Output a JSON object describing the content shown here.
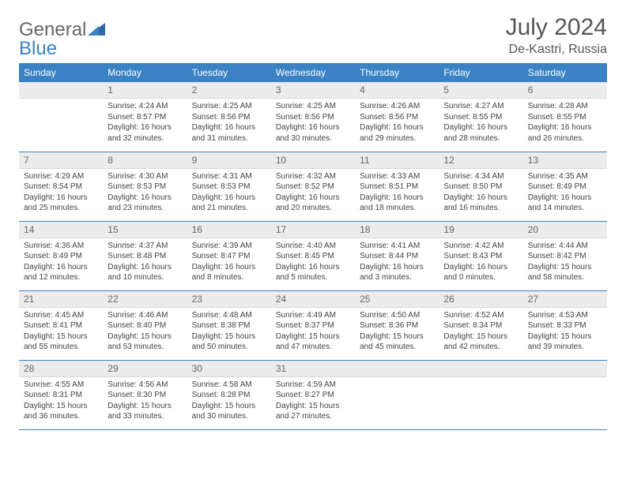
{
  "logo": {
    "line1": "General",
    "line2": "Blue"
  },
  "title": "July 2024",
  "location": "De-Kastri, Russia",
  "colors": {
    "header_bg": "#3a82c4",
    "header_text": "#ffffff",
    "daynum_bg": "#ececec",
    "daynum_text": "#666666",
    "body_text": "#444444",
    "rule": "#3a82c4",
    "page_bg": "#ffffff"
  },
  "typography": {
    "title_size_pt": 22,
    "location_size_pt": 12,
    "dayheader_size_pt": 9,
    "cell_size_pt": 7.5
  },
  "calendar": {
    "day_headers": [
      "Sunday",
      "Monday",
      "Tuesday",
      "Wednesday",
      "Thursday",
      "Friday",
      "Saturday"
    ],
    "weeks": [
      [
        null,
        {
          "n": "1",
          "sr": "Sunrise: 4:24 AM",
          "ss": "Sunset: 8:57 PM",
          "d1": "Daylight: 16 hours",
          "d2": "and 32 minutes."
        },
        {
          "n": "2",
          "sr": "Sunrise: 4:25 AM",
          "ss": "Sunset: 8:56 PM",
          "d1": "Daylight: 16 hours",
          "d2": "and 31 minutes."
        },
        {
          "n": "3",
          "sr": "Sunrise: 4:25 AM",
          "ss": "Sunset: 8:56 PM",
          "d1": "Daylight: 16 hours",
          "d2": "and 30 minutes."
        },
        {
          "n": "4",
          "sr": "Sunrise: 4:26 AM",
          "ss": "Sunset: 8:56 PM",
          "d1": "Daylight: 16 hours",
          "d2": "and 29 minutes."
        },
        {
          "n": "5",
          "sr": "Sunrise: 4:27 AM",
          "ss": "Sunset: 8:55 PM",
          "d1": "Daylight: 16 hours",
          "d2": "and 28 minutes."
        },
        {
          "n": "6",
          "sr": "Sunrise: 4:28 AM",
          "ss": "Sunset: 8:55 PM",
          "d1": "Daylight: 16 hours",
          "d2": "and 26 minutes."
        }
      ],
      [
        {
          "n": "7",
          "sr": "Sunrise: 4:29 AM",
          "ss": "Sunset: 8:54 PM",
          "d1": "Daylight: 16 hours",
          "d2": "and 25 minutes."
        },
        {
          "n": "8",
          "sr": "Sunrise: 4:30 AM",
          "ss": "Sunset: 8:53 PM",
          "d1": "Daylight: 16 hours",
          "d2": "and 23 minutes."
        },
        {
          "n": "9",
          "sr": "Sunrise: 4:31 AM",
          "ss": "Sunset: 8:53 PM",
          "d1": "Daylight: 16 hours",
          "d2": "and 21 minutes."
        },
        {
          "n": "10",
          "sr": "Sunrise: 4:32 AM",
          "ss": "Sunset: 8:52 PM",
          "d1": "Daylight: 16 hours",
          "d2": "and 20 minutes."
        },
        {
          "n": "11",
          "sr": "Sunrise: 4:33 AM",
          "ss": "Sunset: 8:51 PM",
          "d1": "Daylight: 16 hours",
          "d2": "and 18 minutes."
        },
        {
          "n": "12",
          "sr": "Sunrise: 4:34 AM",
          "ss": "Sunset: 8:50 PM",
          "d1": "Daylight: 16 hours",
          "d2": "and 16 minutes."
        },
        {
          "n": "13",
          "sr": "Sunrise: 4:35 AM",
          "ss": "Sunset: 8:49 PM",
          "d1": "Daylight: 16 hours",
          "d2": "and 14 minutes."
        }
      ],
      [
        {
          "n": "14",
          "sr": "Sunrise: 4:36 AM",
          "ss": "Sunset: 8:49 PM",
          "d1": "Daylight: 16 hours",
          "d2": "and 12 minutes."
        },
        {
          "n": "15",
          "sr": "Sunrise: 4:37 AM",
          "ss": "Sunset: 8:48 PM",
          "d1": "Daylight: 16 hours",
          "d2": "and 10 minutes."
        },
        {
          "n": "16",
          "sr": "Sunrise: 4:39 AM",
          "ss": "Sunset: 8:47 PM",
          "d1": "Daylight: 16 hours",
          "d2": "and 8 minutes."
        },
        {
          "n": "17",
          "sr": "Sunrise: 4:40 AM",
          "ss": "Sunset: 8:45 PM",
          "d1": "Daylight: 16 hours",
          "d2": "and 5 minutes."
        },
        {
          "n": "18",
          "sr": "Sunrise: 4:41 AM",
          "ss": "Sunset: 8:44 PM",
          "d1": "Daylight: 16 hours",
          "d2": "and 3 minutes."
        },
        {
          "n": "19",
          "sr": "Sunrise: 4:42 AM",
          "ss": "Sunset: 8:43 PM",
          "d1": "Daylight: 16 hours",
          "d2": "and 0 minutes."
        },
        {
          "n": "20",
          "sr": "Sunrise: 4:44 AM",
          "ss": "Sunset: 8:42 PM",
          "d1": "Daylight: 15 hours",
          "d2": "and 58 minutes."
        }
      ],
      [
        {
          "n": "21",
          "sr": "Sunrise: 4:45 AM",
          "ss": "Sunset: 8:41 PM",
          "d1": "Daylight: 15 hours",
          "d2": "and 55 minutes."
        },
        {
          "n": "22",
          "sr": "Sunrise: 4:46 AM",
          "ss": "Sunset: 8:40 PM",
          "d1": "Daylight: 15 hours",
          "d2": "and 53 minutes."
        },
        {
          "n": "23",
          "sr": "Sunrise: 4:48 AM",
          "ss": "Sunset: 8:38 PM",
          "d1": "Daylight: 15 hours",
          "d2": "and 50 minutes."
        },
        {
          "n": "24",
          "sr": "Sunrise: 4:49 AM",
          "ss": "Sunset: 8:37 PM",
          "d1": "Daylight: 15 hours",
          "d2": "and 47 minutes."
        },
        {
          "n": "25",
          "sr": "Sunrise: 4:50 AM",
          "ss": "Sunset: 8:36 PM",
          "d1": "Daylight: 15 hours",
          "d2": "and 45 minutes."
        },
        {
          "n": "26",
          "sr": "Sunrise: 4:52 AM",
          "ss": "Sunset: 8:34 PM",
          "d1": "Daylight: 15 hours",
          "d2": "and 42 minutes."
        },
        {
          "n": "27",
          "sr": "Sunrise: 4:53 AM",
          "ss": "Sunset: 8:33 PM",
          "d1": "Daylight: 15 hours",
          "d2": "and 39 minutes."
        }
      ],
      [
        {
          "n": "28",
          "sr": "Sunrise: 4:55 AM",
          "ss": "Sunset: 8:31 PM",
          "d1": "Daylight: 15 hours",
          "d2": "and 36 minutes."
        },
        {
          "n": "29",
          "sr": "Sunrise: 4:56 AM",
          "ss": "Sunset: 8:30 PM",
          "d1": "Daylight: 15 hours",
          "d2": "and 33 minutes."
        },
        {
          "n": "30",
          "sr": "Sunrise: 4:58 AM",
          "ss": "Sunset: 8:28 PM",
          "d1": "Daylight: 15 hours",
          "d2": "and 30 minutes."
        },
        {
          "n": "31",
          "sr": "Sunrise: 4:59 AM",
          "ss": "Sunset: 8:27 PM",
          "d1": "Daylight: 15 hours",
          "d2": "and 27 minutes."
        },
        null,
        null,
        null
      ]
    ]
  }
}
